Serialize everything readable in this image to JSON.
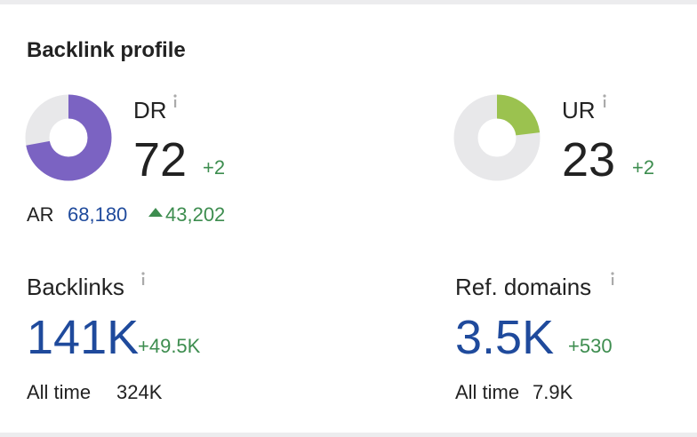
{
  "title": "Backlink profile",
  "dr": {
    "label": "DR",
    "value": 72,
    "change": "+2",
    "color": "#7b63c2"
  },
  "ar": {
    "label": "AR",
    "value": "68,180",
    "change": "43,202"
  },
  "ur": {
    "label": "UR",
    "value": 23,
    "change": "+2",
    "color": "#9bc24f"
  },
  "backlinks": {
    "label": "Backlinks",
    "value": "141K",
    "change": "+49.5K",
    "all_time_label": "All time",
    "all_time_value": "324K"
  },
  "ref_domains": {
    "label": "Ref. domains",
    "value": "3.5K",
    "change": "+530",
    "all_time_label": "All time",
    "all_time_value": "7.9K"
  }
}
